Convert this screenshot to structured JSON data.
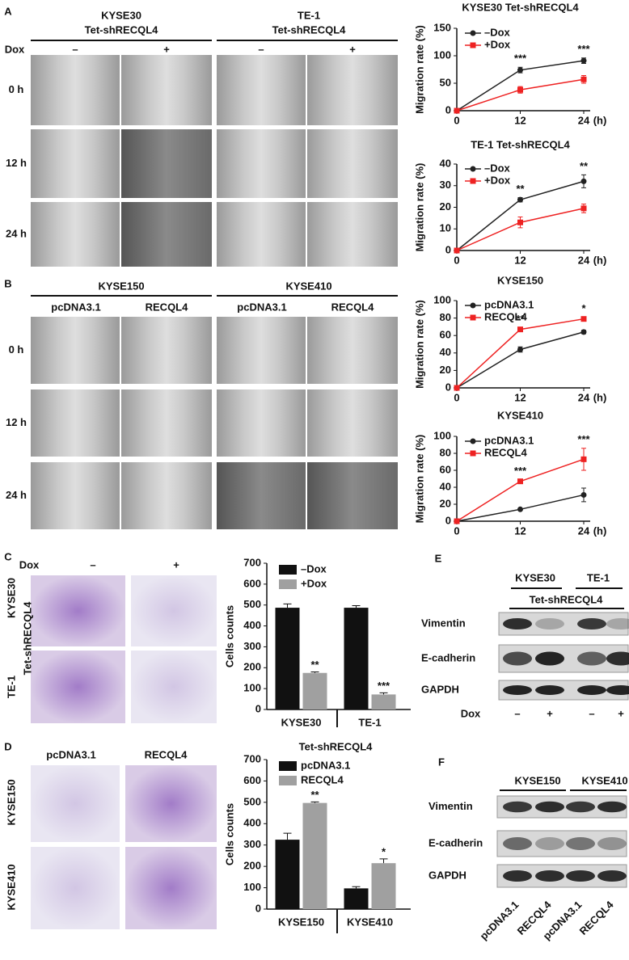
{
  "panels": [
    "A",
    "B",
    "C",
    "D",
    "E",
    "F"
  ],
  "panel_a": {
    "groups": [
      [
        "KYSE30",
        "Tet-shRECQL4"
      ],
      [
        "TE-1",
        "Tet-shRECQL4"
      ]
    ],
    "condition": "Dox",
    "columns": [
      "–",
      "+",
      "–",
      "+"
    ],
    "rows": [
      "0 h",
      "12 h",
      "24 h"
    ]
  },
  "panel_b": {
    "groups": [
      "KYSE150",
      "KYSE410"
    ],
    "columns": [
      "pcDNA3.1",
      "RECQL4",
      "pcDNA3.1",
      "RECQL4"
    ],
    "rows": [
      "0 h",
      "12 h",
      "24 h"
    ]
  },
  "panel_c": {
    "condition": "Dox",
    "columns": [
      "–",
      "+"
    ],
    "rows": [
      "KYSE30",
      "TE-1"
    ],
    "group": "Tet-shRECQL4"
  },
  "panel_d": {
    "columns": [
      "pcDNA3.1",
      "RECQL4"
    ],
    "rows": [
      "KYSE150",
      "KYSE410"
    ]
  },
  "panel_e": {
    "groups": [
      "KYSE30",
      "TE-1"
    ],
    "subtitle": "Tet-shRECQL4",
    "proteins": [
      "Vimentin",
      "E-cadherin",
      "GAPDH"
    ],
    "condition": "Dox",
    "lanes": [
      "–",
      "+",
      "–",
      "+"
    ]
  },
  "panel_f": {
    "groups": [
      "KYSE150",
      "KYSE410"
    ],
    "proteins": [
      "Vimentin",
      "E-cadherin",
      "GAPDH"
    ],
    "lanes": [
      "pcDNA3.1",
      "RECQL4",
      "pcDNA3.1",
      "RECQL4"
    ]
  },
  "chart_data": [
    {
      "type": "line",
      "title": "KYSE30 Tet-shRECQL4",
      "y_label": "Migration rate (%)",
      "x": [
        0,
        12,
        24
      ],
      "x_unit": "(h)",
      "xlim": [
        0,
        24
      ],
      "xticks": [
        0,
        12,
        24
      ],
      "ylim": [
        0,
        150
      ],
      "yticks": [
        0,
        50,
        100,
        150
      ],
      "series": [
        {
          "name": "–Dox",
          "color": "#222222",
          "values": [
            0,
            74,
            91
          ],
          "errors": [
            0,
            5,
            5
          ]
        },
        {
          "name": "+Dox",
          "color": "#ee2222",
          "values": [
            0,
            38,
            57
          ],
          "errors": [
            0,
            6,
            7
          ]
        }
      ],
      "annotations": [
        null,
        "***",
        "***"
      ]
    },
    {
      "type": "line",
      "title": "TE-1 Tet-shRECQL4",
      "y_label": "Migration rate (%)",
      "x": [
        0,
        12,
        24
      ],
      "x_unit": "(h)",
      "xlim": [
        0,
        24
      ],
      "xticks": [
        0,
        12,
        24
      ],
      "ylim": [
        0,
        40
      ],
      "yticks": [
        0,
        10,
        20,
        30,
        40
      ],
      "series": [
        {
          "name": "–Dox",
          "color": "#222222",
          "values": [
            0,
            23.5,
            32
          ],
          "errors": [
            0,
            1,
            3
          ]
        },
        {
          "name": "+Dox",
          "color": "#ee2222",
          "values": [
            0,
            13,
            19.5
          ],
          "errors": [
            0,
            2.5,
            2
          ]
        }
      ],
      "annotations": [
        null,
        "**",
        "**"
      ]
    },
    {
      "type": "line",
      "title": "KYSE150",
      "y_label": "Migration rate (%)",
      "x": [
        0,
        12,
        24
      ],
      "x_unit": "(h)",
      "xlim": [
        0,
        24
      ],
      "xticks": [
        0,
        12,
        24
      ],
      "ylim": [
        0,
        100
      ],
      "yticks": [
        0,
        20,
        40,
        60,
        80,
        100
      ],
      "series": [
        {
          "name": "pcDNA3.1",
          "color": "#222222",
          "values": [
            0,
            44,
            64
          ],
          "errors": [
            0,
            3,
            2
          ]
        },
        {
          "name": "RECQL4",
          "color": "#ee2222",
          "values": [
            0,
            67,
            79
          ],
          "errors": [
            0,
            2,
            2
          ]
        }
      ],
      "annotations": [
        null,
        "**",
        "*"
      ]
    },
    {
      "type": "line",
      "title": "KYSE410",
      "y_label": "Migration rate (%)",
      "x": [
        0,
        12,
        24
      ],
      "x_unit": "(h)",
      "xlim": [
        0,
        24
      ],
      "xticks": [
        0,
        12,
        24
      ],
      "ylim": [
        0,
        100
      ],
      "yticks": [
        0,
        20,
        40,
        60,
        80,
        100
      ],
      "series": [
        {
          "name": "pcDNA3.1",
          "color": "#222222",
          "values": [
            0,
            14,
            31
          ],
          "errors": [
            0,
            1,
            8
          ]
        },
        {
          "name": "RECQL4",
          "color": "#ee2222",
          "values": [
            0,
            47,
            73
          ],
          "errors": [
            0,
            2,
            13
          ]
        }
      ],
      "annotations": [
        null,
        "***",
        "***"
      ]
    },
    {
      "type": "bar",
      "y_label": "Cells counts",
      "categories": [
        "KYSE30",
        "TE-1"
      ],
      "ylim": [
        0,
        700
      ],
      "yticks": [
        0,
        100,
        200,
        300,
        400,
        500,
        600,
        700
      ],
      "series": [
        {
          "name": "–Dox",
          "color": "#111111",
          "values": [
            487,
            487
          ],
          "errors": [
            18,
            10
          ]
        },
        {
          "name": "+Dox",
          "color": "#a0a0a0",
          "values": [
            175,
            72
          ],
          "errors": [
            5,
            8
          ],
          "annotations": [
            "**",
            "***"
          ]
        }
      ],
      "group_label": "Tet-shRECQL4"
    },
    {
      "type": "bar",
      "y_label": "Cells counts",
      "categories": [
        "KYSE150",
        "KYSE410"
      ],
      "ylim": [
        0,
        700
      ],
      "yticks": [
        0,
        100,
        200,
        300,
        400,
        500,
        600,
        700
      ],
      "series": [
        {
          "name": "pcDNA3.1",
          "color": "#111111",
          "values": [
            325,
            97
          ],
          "errors": [
            30,
            8
          ]
        },
        {
          "name": "RECQL4",
          "color": "#a0a0a0",
          "values": [
            497,
            215
          ],
          "errors": [
            5,
            20
          ],
          "annotations": [
            "**",
            "*"
          ]
        }
      ]
    }
  ]
}
